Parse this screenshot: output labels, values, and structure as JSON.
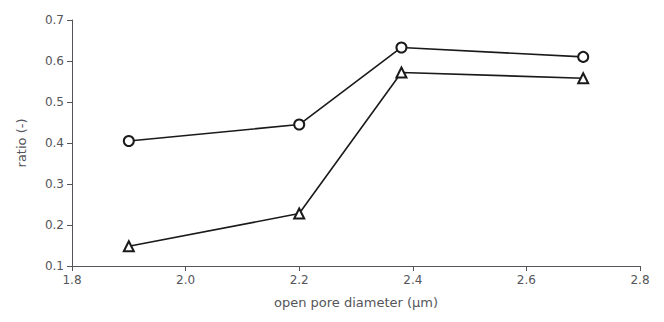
{
  "chart_data": {
    "type": "line",
    "xlabel": "open pore diameter (μm)",
    "ylabel": "ratio (-)",
    "x": [
      1.9,
      2.2,
      2.38,
      2.7
    ],
    "series": [
      {
        "color": "#1a1a1a",
        "marker": "circle",
        "values": [
          0.405,
          0.445,
          0.633,
          0.61
        ]
      },
      {
        "color": "#1a1a1a",
        "marker": "triangle",
        "values": [
          0.148,
          0.228,
          0.572,
          0.558
        ]
      }
    ],
    "xlim": [
      1.8,
      2.8
    ],
    "ylim": [
      0.1,
      0.7
    ],
    "xticks": [
      1.8,
      {
        "value": 2.0,
        "label": "2.0"
      },
      2.2,
      2.4,
      2.6,
      2.8
    ],
    "yticks": [
      0.1,
      0.2,
      0.3,
      0.4,
      0.5,
      0.6,
      0.7
    ],
    "grid": false
  }
}
